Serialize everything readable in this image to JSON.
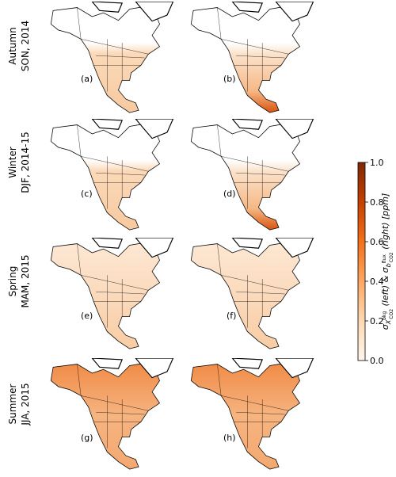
{
  "rows": [
    {
      "season": "Autumn",
      "period": "SON, 2014"
    },
    {
      "season": "Winter",
      "period": "DJF, 2014-15"
    },
    {
      "season": "Spring",
      "period": "MAM, 2015"
    },
    {
      "season": "Summer",
      "period": "JJA, 2015"
    }
  ],
  "panels": [
    "(a)",
    "(b)",
    "(c)",
    "(d)",
    "(e)",
    "(f)",
    "(g)",
    "(h)"
  ],
  "colorbar": {
    "clim": [
      0,
      1
    ],
    "ticks": [
      {
        "value": 0,
        "label": "0.0"
      },
      {
        "value": 0.2,
        "label": "0.2"
      },
      {
        "value": 0.4,
        "label": "0.4"
      },
      {
        "value": 0.6,
        "label": "0.6"
      },
      {
        "value": 0.8,
        "label": "0.8"
      },
      {
        "value": 1,
        "label": "1.0"
      }
    ],
    "label_parts": [
      "σ",
      "X",
      "bkg",
      "CO2",
      " (left) & σ",
      "b",
      "flux",
      "CO2",
      " (right) [ppm]"
    ]
  }
}
